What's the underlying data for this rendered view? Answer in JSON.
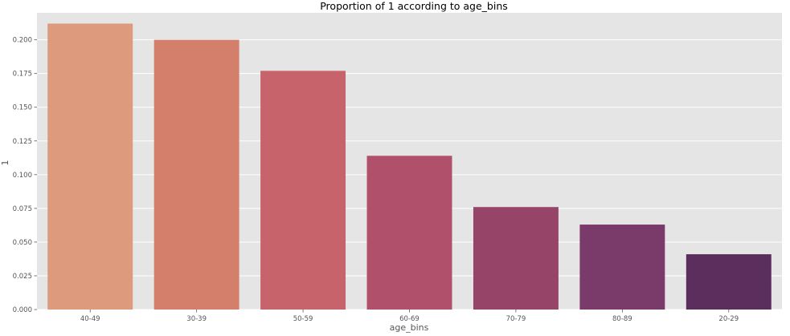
{
  "chart_data": {
    "type": "bar",
    "title": "Proportion of 1 according to age_bins",
    "xlabel": "age_bins",
    "ylabel": "1",
    "categories": [
      "40-49",
      "30-39",
      "50-59",
      "60-69",
      "70-79",
      "80-89",
      "20-29"
    ],
    "values": [
      0.212,
      0.2,
      0.177,
      0.114,
      0.076,
      0.063,
      0.041
    ],
    "ylim": [
      0,
      0.22
    ],
    "yticks": [
      "0.000",
      "0.025",
      "0.050",
      "0.075",
      "0.100",
      "0.125",
      "0.150",
      "0.175",
      "0.200"
    ],
    "ytick_values": [
      0,
      0.025,
      0.05,
      0.075,
      0.1,
      0.125,
      0.15,
      0.175,
      0.2
    ],
    "grid": true,
    "legend": "none",
    "colors": [
      "#dd9a7d",
      "#d47e6c",
      "#c7636b",
      "#b0506b",
      "#964569",
      "#7b3b6a",
      "#5c2e5d"
    ],
    "background": "#e5e5e5",
    "grid_color": "#ffffff"
  }
}
